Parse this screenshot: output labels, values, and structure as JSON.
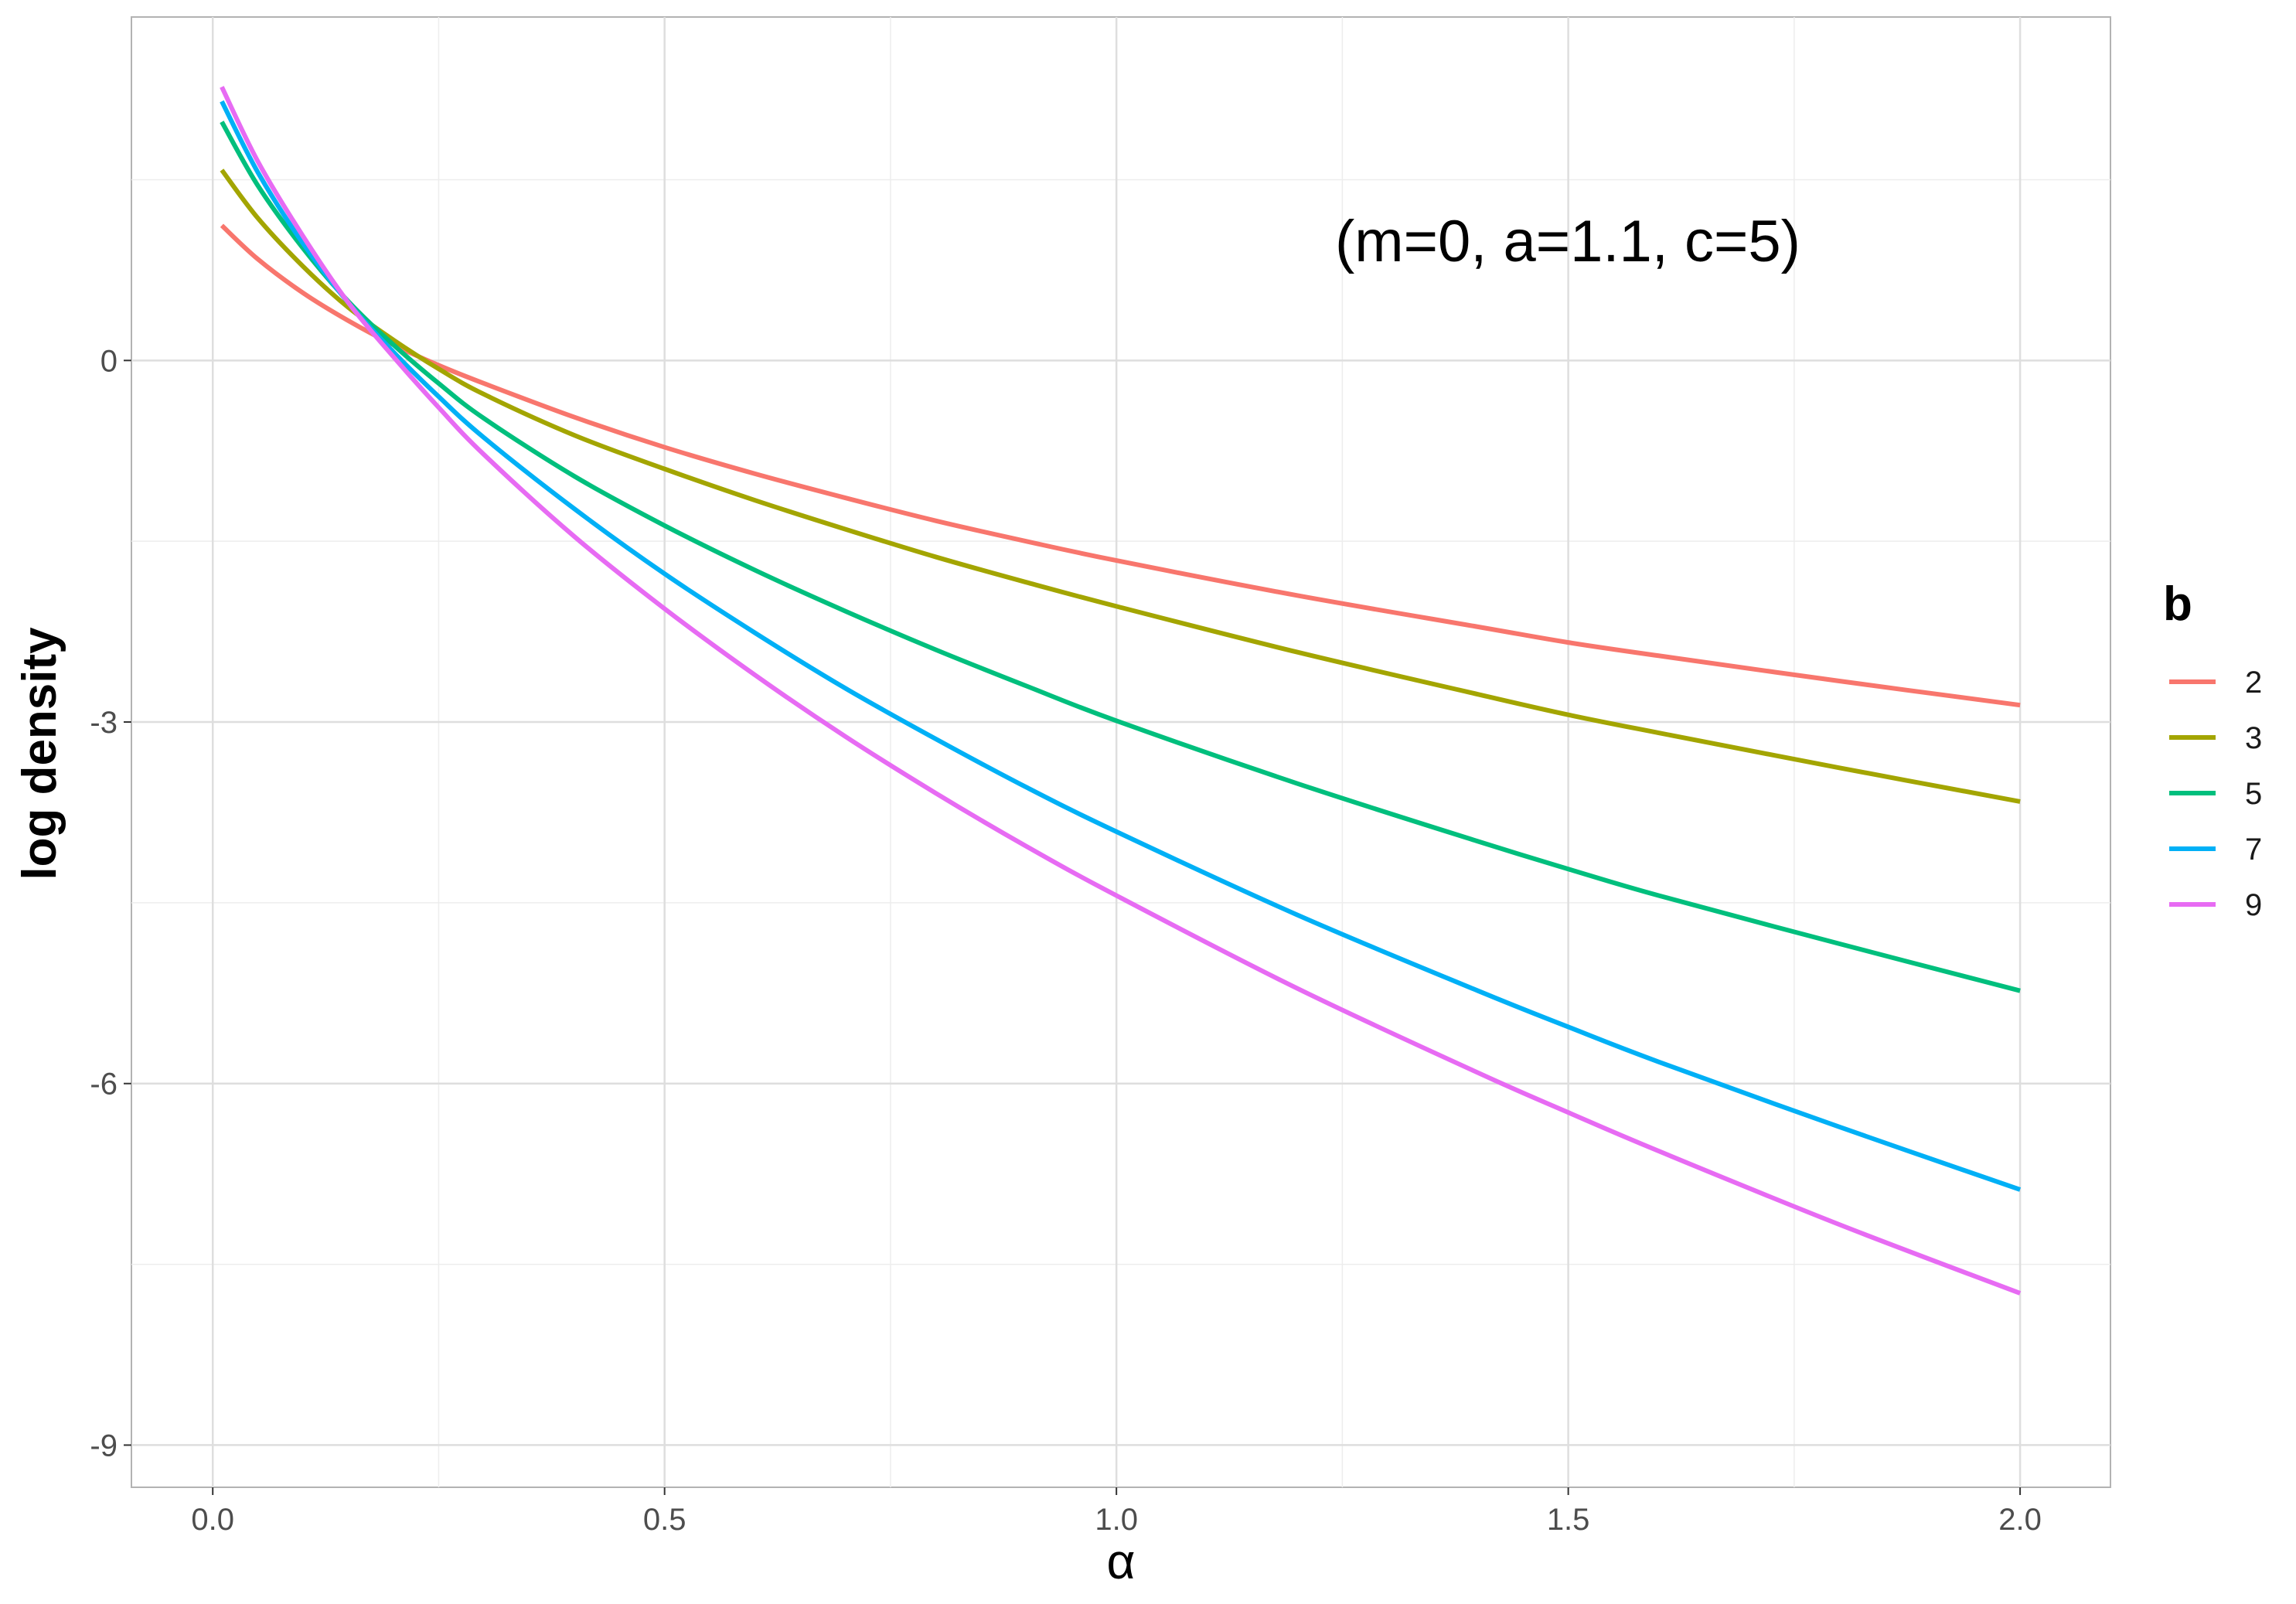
{
  "chart_data": {
    "type": "line",
    "annotation": "(m=0, a=1.1, c=5)",
    "xlabel": "α",
    "ylabel": "log density",
    "xlim": [
      -0.09,
      2.1
    ],
    "ylim": [
      -9.35,
      2.85
    ],
    "x_ticks": [
      0.0,
      0.5,
      1.0,
      1.5,
      2.0
    ],
    "x_tick_labels": [
      "0.0",
      "0.5",
      "1.0",
      "1.5",
      "2.0"
    ],
    "x_minor": [
      0.25,
      0.75,
      1.25,
      1.75
    ],
    "y_ticks": [
      -9,
      -6,
      -3,
      0
    ],
    "y_tick_labels": [
      "-9",
      "-6",
      "-3",
      "0"
    ],
    "y_minor": [
      -7.5,
      -4.5,
      -1.5,
      1.5
    ],
    "grid": true,
    "legend": {
      "title": "b",
      "position": "right",
      "entries": [
        "2",
        "3",
        "5",
        "7",
        "9"
      ]
    },
    "x": [
      0.01,
      0.05,
      0.1,
      0.15,
      0.2,
      0.25,
      0.3,
      0.4,
      0.5,
      0.6,
      0.7,
      0.8,
      0.9,
      1.0,
      1.2,
      1.4,
      1.5,
      1.6,
      1.8,
      2.0
    ],
    "series": [
      {
        "name": "2",
        "color": "#F8766D",
        "values": [
          1.12,
          0.84,
          0.56,
          0.33,
          0.13,
          -0.04,
          -0.19,
          -0.47,
          -0.72,
          -0.94,
          -1.14,
          -1.33,
          -1.5,
          -1.66,
          -1.95,
          -2.21,
          -2.34,
          -2.45,
          -2.66,
          -2.86
        ]
      },
      {
        "name": "3",
        "color": "#A3A500",
        "values": [
          1.58,
          1.18,
          0.78,
          0.44,
          0.17,
          -0.07,
          -0.28,
          -0.62,
          -0.9,
          -1.16,
          -1.4,
          -1.63,
          -1.84,
          -2.04,
          -2.42,
          -2.77,
          -2.94,
          -3.09,
          -3.38,
          -3.66
        ]
      },
      {
        "name": "5",
        "color": "#00BF7D",
        "values": [
          1.98,
          1.45,
          0.93,
          0.49,
          0.13,
          -0.19,
          -0.48,
          -0.96,
          -1.37,
          -1.74,
          -2.08,
          -2.4,
          -2.7,
          -2.99,
          -3.51,
          -3.99,
          -4.22,
          -4.44,
          -4.84,
          -5.23
        ]
      },
      {
        "name": "7",
        "color": "#00B0F6",
        "values": [
          2.15,
          1.56,
          0.97,
          0.48,
          0.07,
          -0.3,
          -0.64,
          -1.23,
          -1.77,
          -2.26,
          -2.72,
          -3.14,
          -3.54,
          -3.91,
          -4.6,
          -5.23,
          -5.53,
          -5.82,
          -6.36,
          -6.88
        ]
      },
      {
        "name": "9",
        "color": "#E76BF3",
        "values": [
          2.27,
          1.65,
          1.03,
          0.48,
          0.03,
          -0.39,
          -0.78,
          -1.46,
          -2.06,
          -2.61,
          -3.12,
          -3.59,
          -4.03,
          -4.44,
          -5.21,
          -5.91,
          -6.24,
          -6.56,
          -7.17,
          -7.74
        ]
      }
    ]
  }
}
